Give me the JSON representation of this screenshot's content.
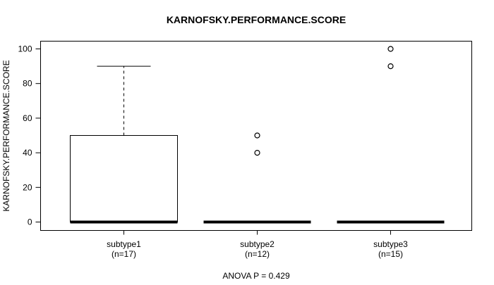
{
  "chart_data": {
    "type": "boxplot",
    "title": "KARNOFSKY.PERFORMANCE.SCORE",
    "xlabel": "",
    "ylabel": "KARNOFSKY.PERFORMANCE.SCORE",
    "annotation": "ANOVA P = 0.429",
    "ylim": [
      0,
      100
    ],
    "yticks": [
      0,
      20,
      40,
      60,
      80,
      100
    ],
    "grid": false,
    "legend": false,
    "groups": [
      {
        "label": "subtype1",
        "n_label": "(n=17)",
        "n": 17,
        "median": 0,
        "q1": 0,
        "q3": 50,
        "whisker_low": 0,
        "whisker_high": 90,
        "outliers": []
      },
      {
        "label": "subtype2",
        "n_label": "(n=12)",
        "n": 12,
        "median": 0,
        "q1": 0,
        "q3": 0,
        "whisker_low": 0,
        "whisker_high": 0,
        "outliers": [
          50,
          40
        ]
      },
      {
        "label": "subtype3",
        "n_label": "(n=15)",
        "n": 15,
        "median": 0,
        "q1": 0,
        "q3": 0,
        "whisker_low": 0,
        "whisker_high": 0,
        "outliers": [
          100,
          90
        ]
      }
    ],
    "colors": {
      "foreground": "#000000",
      "background": "#ffffff",
      "box_fill": "#ffffff"
    }
  }
}
